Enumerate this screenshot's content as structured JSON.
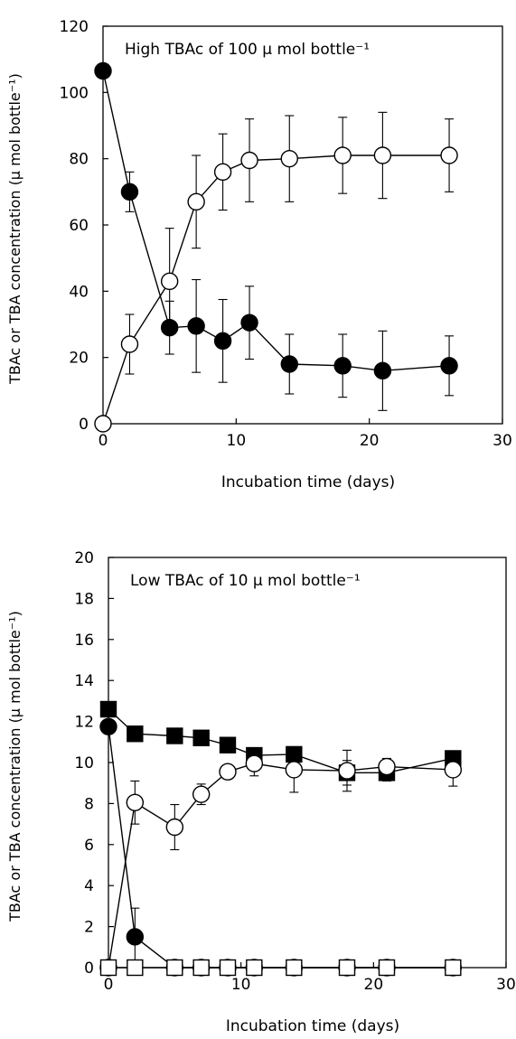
{
  "chart_data": [
    {
      "type": "scatter",
      "title": "High TBAc of 100 μ mol bottle⁻¹",
      "xlabel": "Incubation time (days)",
      "ylabel": "TBAc or TBA concentration (μ mol bottle⁻¹)",
      "xlim": [
        0,
        30
      ],
      "ylim": [
        0,
        120
      ],
      "xticks": [
        "0",
        "10",
        "20",
        "30"
      ],
      "yticks": [
        "0",
        "20",
        "40",
        "60",
        "80",
        "100",
        "120"
      ],
      "grid": false,
      "legend": "none",
      "series": [
        {
          "marker": "filled-circle",
          "x": [
            0,
            2,
            5,
            7,
            9,
            11,
            14,
            18,
            21,
            26
          ],
          "y": [
            106.5,
            70,
            29,
            29.5,
            25,
            30.5,
            18,
            17.5,
            16,
            17.5
          ],
          "err": [
            0,
            6,
            8,
            14,
            12.5,
            11,
            9,
            9.5,
            12,
            9
          ]
        },
        {
          "marker": "open-circle",
          "x": [
            0,
            2,
            5,
            7,
            9,
            11,
            14,
            18,
            21,
            26
          ],
          "y": [
            0,
            24,
            43,
            67,
            76,
            79.5,
            80,
            81,
            81,
            81
          ],
          "err": [
            0,
            9,
            16,
            14,
            11.5,
            12.5,
            13,
            11.5,
            13,
            11
          ]
        }
      ]
    },
    {
      "type": "scatter",
      "title": "Low TBAc of 10 μ mol bottle⁻¹",
      "xlabel": "Incubation time (days)",
      "ylabel": "TBAc or TBA concentration (μ mol bottle⁻¹)",
      "xlim": [
        0,
        30
      ],
      "ylim": [
        0,
        20
      ],
      "xticks": [
        "0",
        "10",
        "20",
        "30"
      ],
      "yticks": [
        "0",
        "2",
        "4",
        "6",
        "8",
        "10",
        "12",
        "14",
        "16",
        "18",
        "20"
      ],
      "grid": false,
      "legend": "none",
      "series": [
        {
          "marker": "filled-square",
          "x": [
            0,
            2,
            5,
            7,
            9,
            11,
            14,
            18,
            21,
            26
          ],
          "y": [
            12.6,
            11.4,
            11.3,
            11.2,
            10.85,
            10.35,
            10.4,
            9.5,
            9.5,
            10.2
          ],
          "err": [
            0,
            0,
            0,
            0,
            0,
            0,
            0,
            0.6,
            0.4,
            0
          ]
        },
        {
          "marker": "filled-circle",
          "x": [
            0,
            2,
            5,
            7,
            9,
            11,
            14,
            18,
            21,
            26
          ],
          "y": [
            11.75,
            1.5,
            0,
            0,
            0,
            0,
            0,
            0,
            0,
            0
          ],
          "err": [
            0,
            1.4,
            0,
            0,
            0,
            0,
            0,
            0,
            0,
            0
          ]
        },
        {
          "marker": "open-circle",
          "x": [
            0,
            2,
            5,
            7,
            9,
            11,
            14,
            18,
            21,
            26
          ],
          "y": [
            0,
            8.05,
            6.85,
            8.45,
            9.55,
            9.95,
            9.65,
            9.6,
            9.8,
            9.65
          ],
          "err": [
            0,
            1.05,
            1.1,
            0.5,
            0,
            0.6,
            1.1,
            1.0,
            0.4,
            0.8
          ]
        },
        {
          "marker": "open-square",
          "x": [
            0,
            2,
            5,
            7,
            9,
            11,
            14,
            18,
            21,
            26
          ],
          "y": [
            0,
            0,
            0,
            0,
            0,
            0,
            0,
            0,
            0,
            0
          ],
          "err": [
            0,
            0,
            0,
            0,
            0,
            0,
            0,
            0,
            0,
            0
          ]
        }
      ]
    }
  ]
}
